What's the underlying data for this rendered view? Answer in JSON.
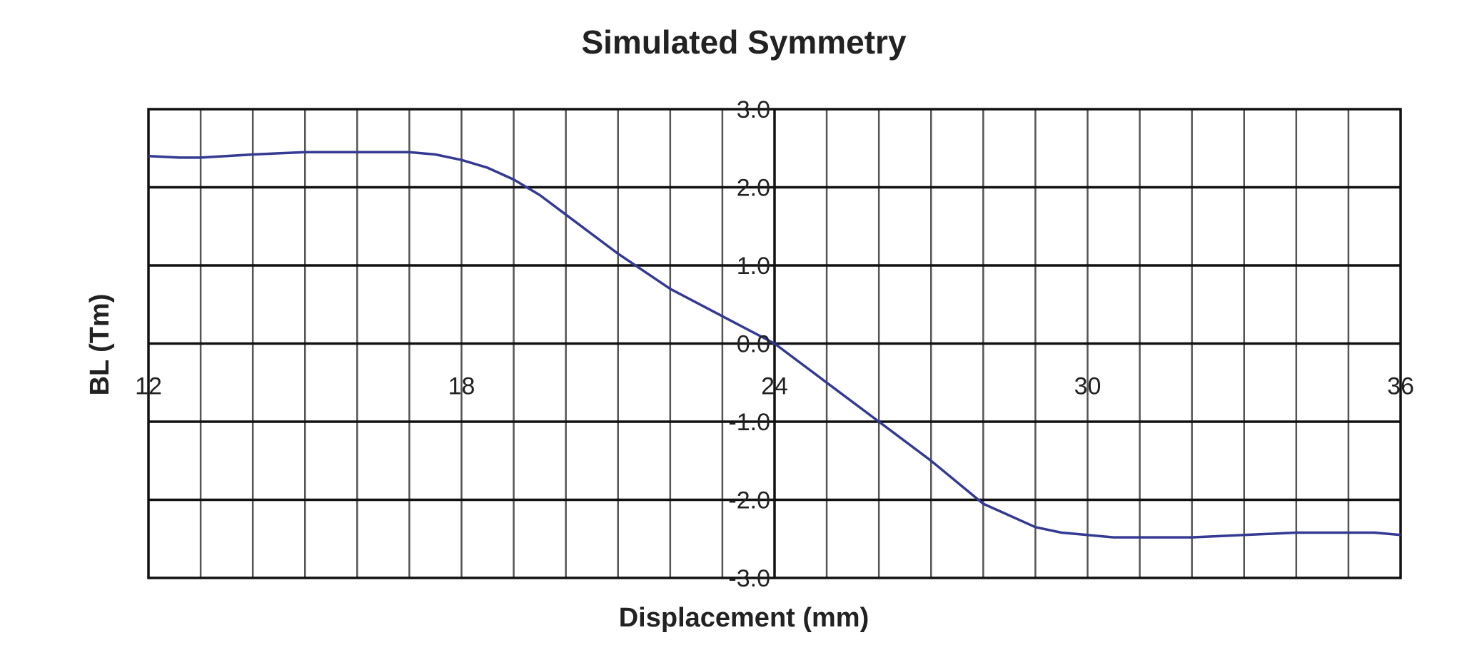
{
  "chart_data": {
    "type": "line",
    "title": "Simulated Symmetry",
    "xlabel": "Displacement (mm)",
    "ylabel": "BL (Tm)",
    "xlim": [
      12,
      36
    ],
    "ylim": [
      -3.0,
      3.0
    ],
    "x_ticks": [
      "12",
      "18",
      "24",
      "30",
      "36"
    ],
    "y_ticks": [
      "3.0",
      "2.0",
      "1.0",
      "0.0",
      "-1.0",
      "-2.0",
      "-3.0"
    ],
    "grid": true,
    "x_minor_step": 1,
    "y_major_step": 1,
    "series": [
      {
        "color": "#343a92",
        "x": [
          12.0,
          12.6,
          13.0,
          14.0,
          15.0,
          16.0,
          17.0,
          17.5,
          18.0,
          18.5,
          19.0,
          19.5,
          20.0,
          21.0,
          22.0,
          23.0,
          24.0,
          25.0,
          26.0,
          27.0,
          28.0,
          29.0,
          29.5,
          30.0,
          30.5,
          31.0,
          31.5,
          32.0,
          33.0,
          34.0,
          35.0,
          35.5,
          36.0
        ],
        "y": [
          2.4,
          2.38,
          2.38,
          2.42,
          2.45,
          2.45,
          2.45,
          2.42,
          2.35,
          2.25,
          2.1,
          1.9,
          1.65,
          1.15,
          0.7,
          0.35,
          0.0,
          -0.5,
          -1.0,
          -1.5,
          -2.05,
          -2.35,
          -2.42,
          -2.45,
          -2.48,
          -2.48,
          -2.48,
          -2.48,
          -2.45,
          -2.42,
          -2.42,
          -2.42,
          -2.45
        ]
      }
    ]
  }
}
